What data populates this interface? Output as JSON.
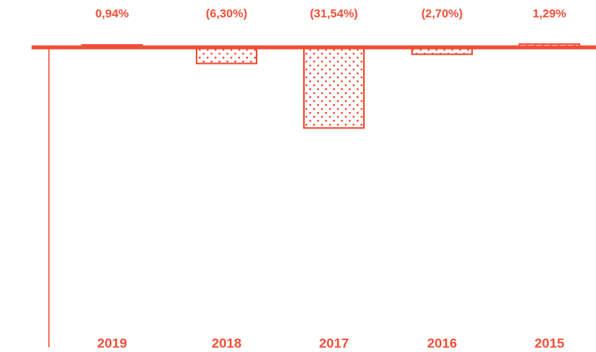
{
  "chart_data": {
    "type": "bar",
    "categories": [
      "2019",
      "2018",
      "2017",
      "2016",
      "2015"
    ],
    "values": [
      0.94,
      -6.3,
      -31.54,
      -2.7,
      1.29
    ],
    "value_labels": [
      "0,94%",
      "(6,30%)",
      "(31,54%)",
      "(2,70%)",
      "1,29%"
    ],
    "color": "#f04e37",
    "fill_styles": [
      "solid",
      "dotted",
      "dotted",
      "dotted",
      "dotted"
    ]
  }
}
